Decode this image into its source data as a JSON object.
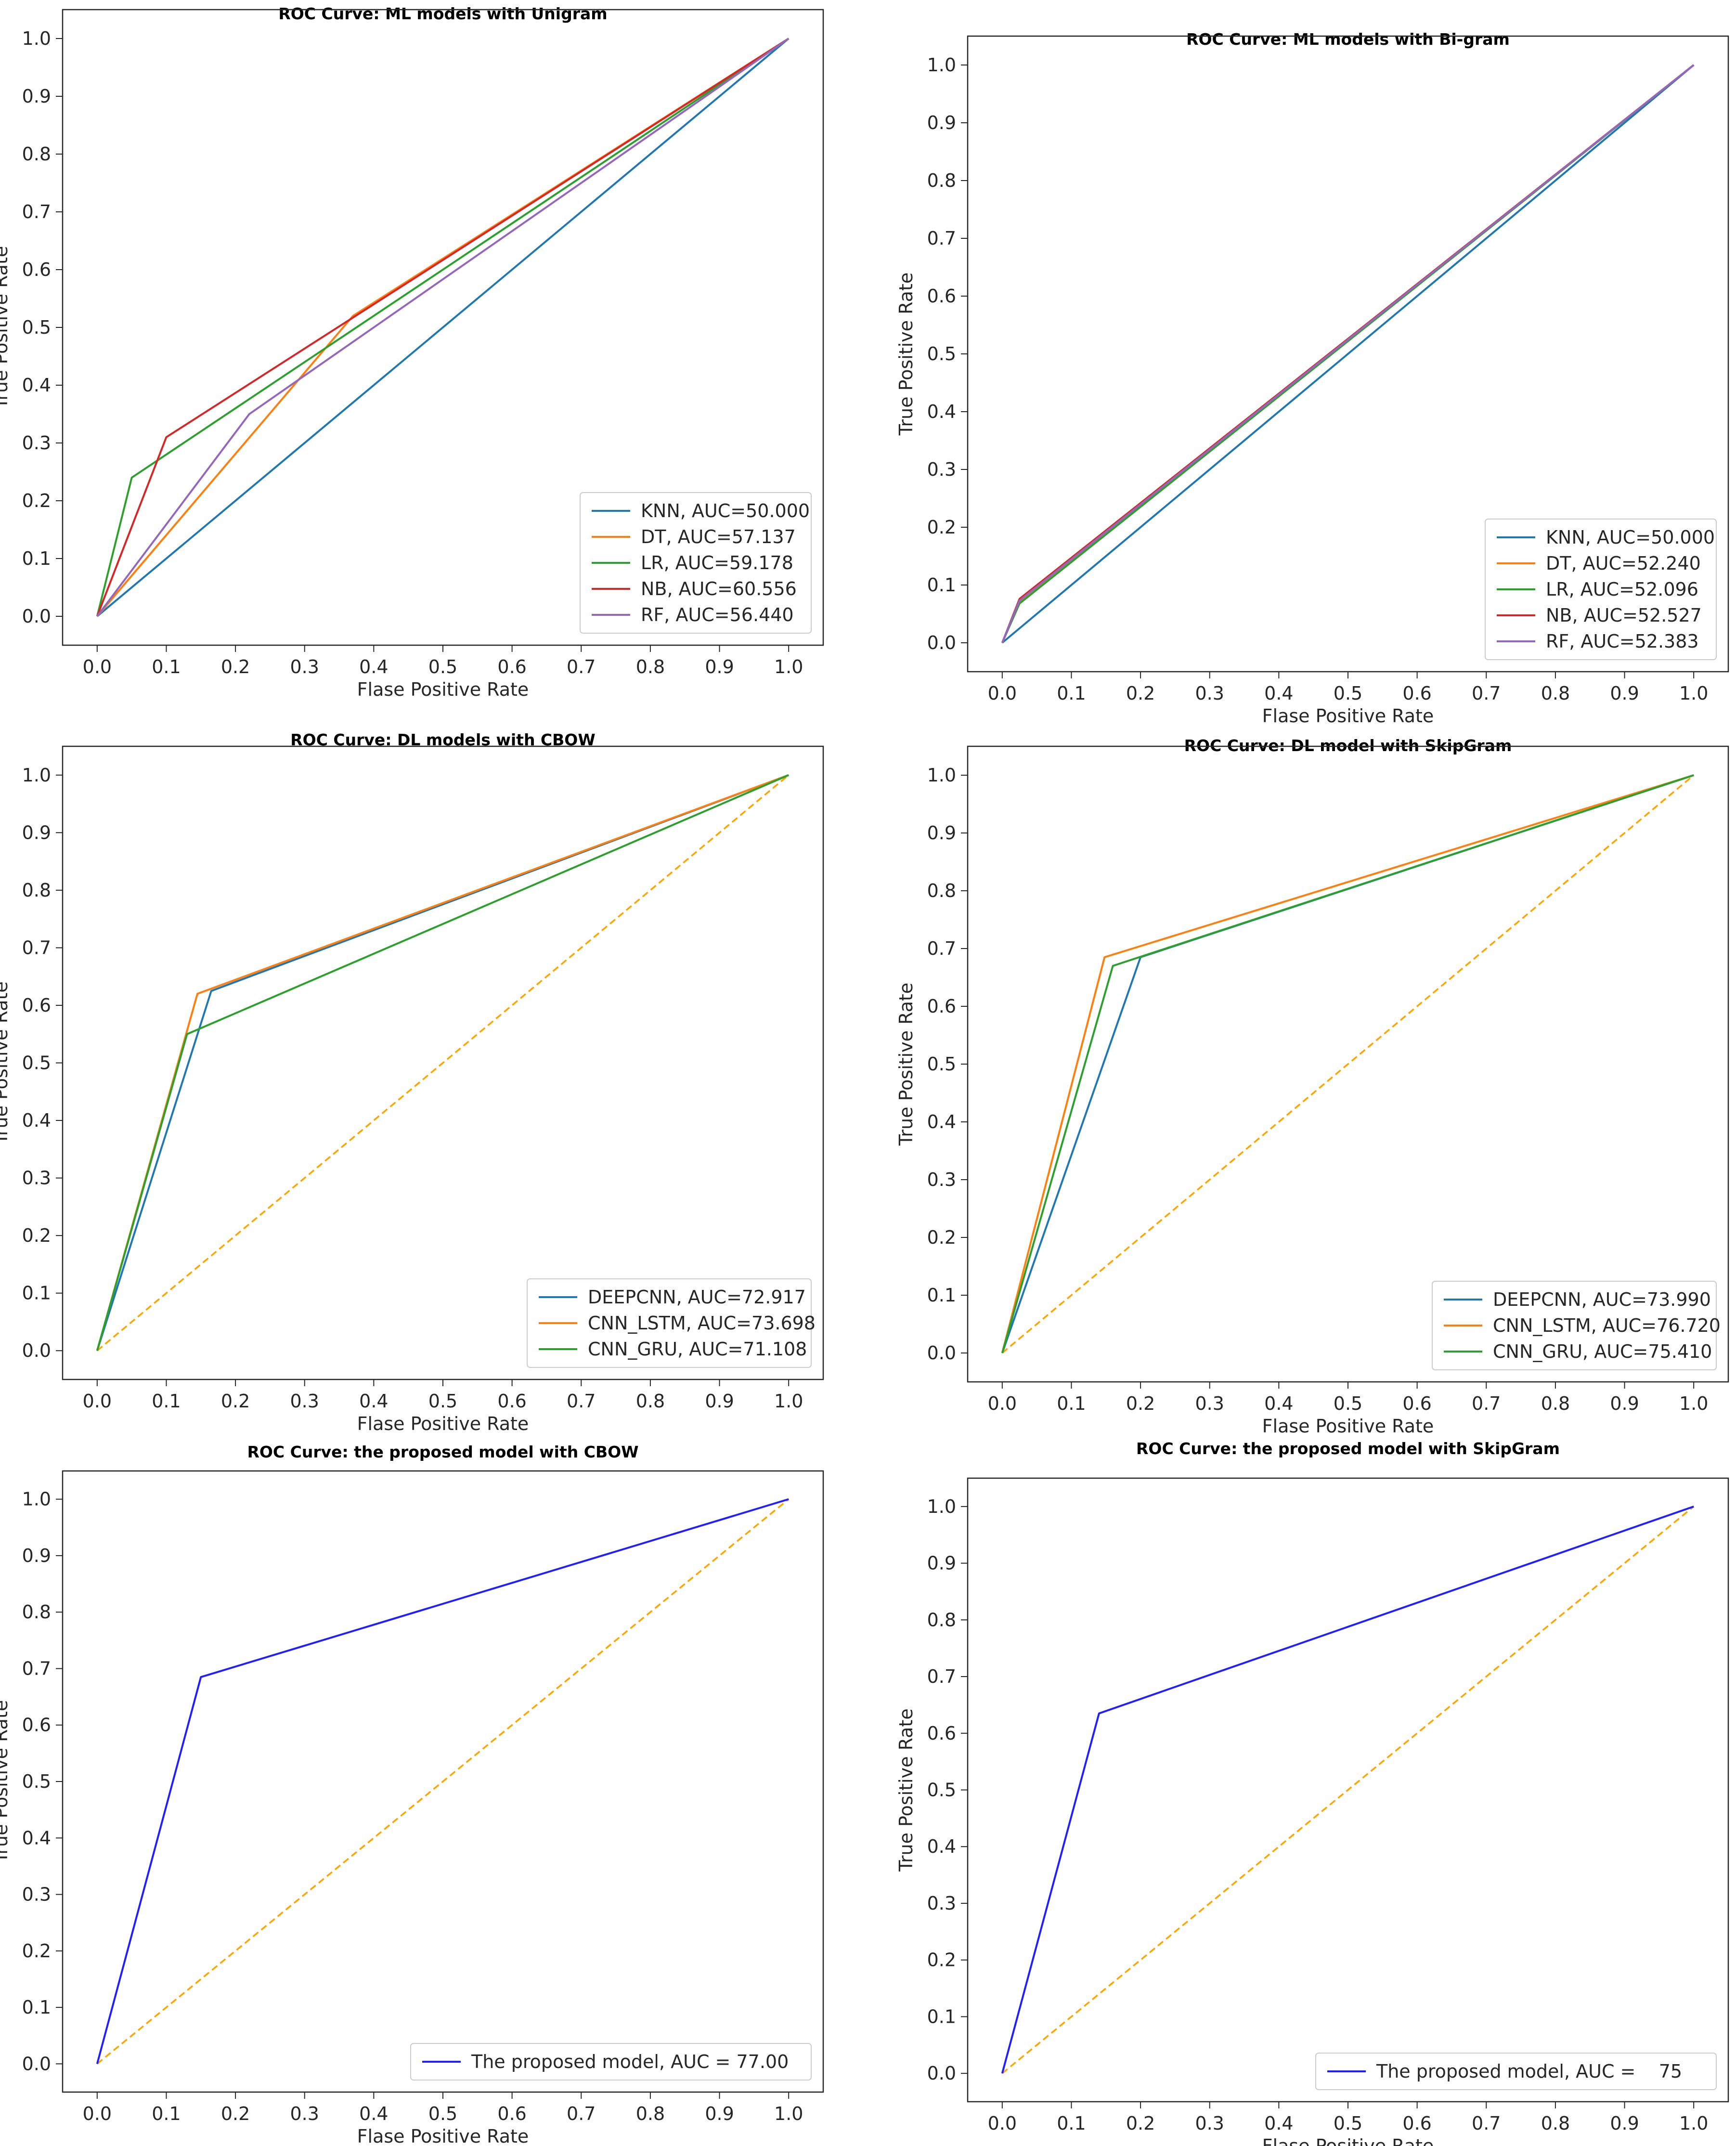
{
  "colors": {
    "KNN": "#1f77b4",
    "DT": "#ff7f0e",
    "LR": "#2ca02c",
    "NB": "#d62728",
    "RF": "#9467bd",
    "DEEPCNN": "#1f77b4",
    "CNN_LSTM": "#ff7f0e",
    "CNN_GRU": "#2ca02c",
    "proposed": "#1f1fff",
    "diagonal": "#ffa500",
    "axis": "#262626"
  },
  "chart_data": [
    {
      "type": "line",
      "title": "ROC Curve: ML  models with Unigram",
      "xlabel": "Flase Positive Rate",
      "ylabel": "True Positive Rate",
      "xlim": [
        -0.05,
        1.05
      ],
      "ylim": [
        -0.05,
        1.05
      ],
      "ticks": [
        "0.0",
        "0.1",
        "0.2",
        "0.3",
        "0.4",
        "0.5",
        "0.6",
        "0.7",
        "0.8",
        "0.9",
        "1.0"
      ],
      "legend_position": "lower-right",
      "diagonal": {
        "style": "solid",
        "color_key": "diagonal"
      },
      "series": [
        {
          "name": "KNN, AUC=50.000",
          "color_key": "KNN",
          "x": [
            0,
            1
          ],
          "y": [
            0,
            1
          ]
        },
        {
          "name": "DT, AUC=57.137",
          "color_key": "DT",
          "x": [
            0,
            0.37,
            1
          ],
          "y": [
            0,
            0.52,
            1
          ]
        },
        {
          "name": "LR, AUC=59.178",
          "color_key": "LR",
          "x": [
            0,
            0.05,
            1
          ],
          "y": [
            0,
            0.24,
            1
          ]
        },
        {
          "name": "NB, AUC=60.556",
          "color_key": "NB",
          "x": [
            0,
            0.1,
            1
          ],
          "y": [
            0,
            0.31,
            1
          ]
        },
        {
          "name": "RF, AUC=56.440",
          "color_key": "RF",
          "x": [
            0,
            0.22,
            1
          ],
          "y": [
            0,
            0.35,
            1
          ]
        }
      ]
    },
    {
      "type": "line",
      "title": "ROC Curve: ML  models with Bi-gram",
      "xlabel": "Flase Positive Rate",
      "ylabel": "True Positive Rate",
      "xlim": [
        -0.05,
        1.05
      ],
      "ylim": [
        -0.05,
        1.05
      ],
      "ticks": [
        "0.0",
        "0.1",
        "0.2",
        "0.3",
        "0.4",
        "0.5",
        "0.6",
        "0.7",
        "0.8",
        "0.9",
        "1.0"
      ],
      "legend_position": "lower-right",
      "diagonal": {
        "style": "solid",
        "color_key": "diagonal"
      },
      "series": [
        {
          "name": "KNN, AUC=50.000",
          "color_key": "KNN",
          "x": [
            0,
            1
          ],
          "y": [
            0,
            1
          ]
        },
        {
          "name": "DT, AUC=52.240",
          "color_key": "DT",
          "x": [
            0,
            0.025,
            1
          ],
          "y": [
            0,
            0.07,
            1
          ]
        },
        {
          "name": "LR, AUC=52.096",
          "color_key": "LR",
          "x": [
            0,
            0.025,
            1
          ],
          "y": [
            0,
            0.068,
            1
          ]
        },
        {
          "name": "NB, AUC=52.527",
          "color_key": "NB",
          "x": [
            0,
            0.025,
            1
          ],
          "y": [
            0,
            0.076,
            1
          ]
        },
        {
          "name": "RF, AUC=52.383",
          "color_key": "RF",
          "x": [
            0,
            0.025,
            1
          ],
          "y": [
            0,
            0.073,
            1
          ]
        }
      ]
    },
    {
      "type": "line",
      "title": "ROC Curve: DL models with CBOW",
      "xlabel": "Flase Positive Rate",
      "ylabel": "True Positive Rate",
      "xlim": [
        -0.05,
        1.05
      ],
      "ylim": [
        -0.05,
        1.05
      ],
      "ticks": [
        "0.0",
        "0.1",
        "0.2",
        "0.3",
        "0.4",
        "0.5",
        "0.6",
        "0.7",
        "0.8",
        "0.9",
        "1.0"
      ],
      "legend_position": "lower-right",
      "diagonal": {
        "style": "dashed",
        "color_key": "diagonal"
      },
      "series": [
        {
          "name": "DEEPCNN, AUC=72.917",
          "color_key": "DEEPCNN",
          "x": [
            0,
            0.165,
            1
          ],
          "y": [
            0,
            0.625,
            1
          ]
        },
        {
          "name": "CNN_LSTM, AUC=73.698",
          "color_key": "CNN_LSTM",
          "x": [
            0,
            0.145,
            1
          ],
          "y": [
            0,
            0.62,
            1
          ]
        },
        {
          "name": "CNN_GRU, AUC=71.108",
          "color_key": "CNN_GRU",
          "x": [
            0,
            0.13,
            1
          ],
          "y": [
            0,
            0.55,
            1
          ]
        }
      ]
    },
    {
      "type": "line",
      "title": "ROC Curve: DL model with SkipGram",
      "xlabel": "Flase Positive Rate",
      "ylabel": "True Positive Rate",
      "xlim": [
        -0.05,
        1.05
      ],
      "ylim": [
        -0.05,
        1.05
      ],
      "ticks": [
        "0.0",
        "0.1",
        "0.2",
        "0.3",
        "0.4",
        "0.5",
        "0.6",
        "0.7",
        "0.8",
        "0.9",
        "1.0"
      ],
      "legend_position": "lower-right",
      "diagonal": {
        "style": "dashed",
        "color_key": "diagonal"
      },
      "series": [
        {
          "name": "DEEPCNN, AUC=73.990",
          "color_key": "DEEPCNN",
          "x": [
            0,
            0.2,
            1
          ],
          "y": [
            0,
            0.685,
            1
          ]
        },
        {
          "name": "CNN_LSTM, AUC=76.720",
          "color_key": "CNN_LSTM",
          "x": [
            0,
            0.148,
            1
          ],
          "y": [
            0,
            0.685,
            1
          ]
        },
        {
          "name": "CNN_GRU, AUC=75.410",
          "color_key": "CNN_GRU",
          "x": [
            0,
            0.16,
            1
          ],
          "y": [
            0,
            0.67,
            1
          ]
        }
      ]
    },
    {
      "type": "line",
      "title": "ROC Curve: the proposed model with CBOW",
      "xlabel": "Flase Positive Rate",
      "ylabel": "True Positive Rate",
      "xlim": [
        -0.05,
        1.05
      ],
      "ylim": [
        -0.05,
        1.05
      ],
      "ticks": [
        "0.0",
        "0.1",
        "0.2",
        "0.3",
        "0.4",
        "0.5",
        "0.6",
        "0.7",
        "0.8",
        "0.9",
        "1.0"
      ],
      "legend_position": "lower-right",
      "diagonal": {
        "style": "dashed",
        "color_key": "diagonal"
      },
      "series": [
        {
          "name": "The proposed model, AUC = 77.00",
          "color_key": "proposed",
          "x": [
            0,
            0.15,
            1
          ],
          "y": [
            0,
            0.685,
            1
          ]
        }
      ]
    },
    {
      "type": "line",
      "title": "ROC Curve: the proposed model with SkipGram",
      "xlabel": "Flase Positive Rate",
      "ylabel": "True Positive Rate",
      "xlim": [
        -0.05,
        1.05
      ],
      "ylim": [
        -0.05,
        1.05
      ],
      "ticks": [
        "0.0",
        "0.1",
        "0.2",
        "0.3",
        "0.4",
        "0.5",
        "0.6",
        "0.7",
        "0.8",
        "0.9",
        "1.0"
      ],
      "legend_position": "lower-right",
      "diagonal": {
        "style": "dashed",
        "color_key": "diagonal"
      },
      "series": [
        {
          "name": "The proposed model, AUC =    75",
          "color_key": "proposed",
          "x": [
            0,
            0.14,
            1
          ],
          "y": [
            0,
            0.635,
            1
          ]
        }
      ]
    }
  ]
}
